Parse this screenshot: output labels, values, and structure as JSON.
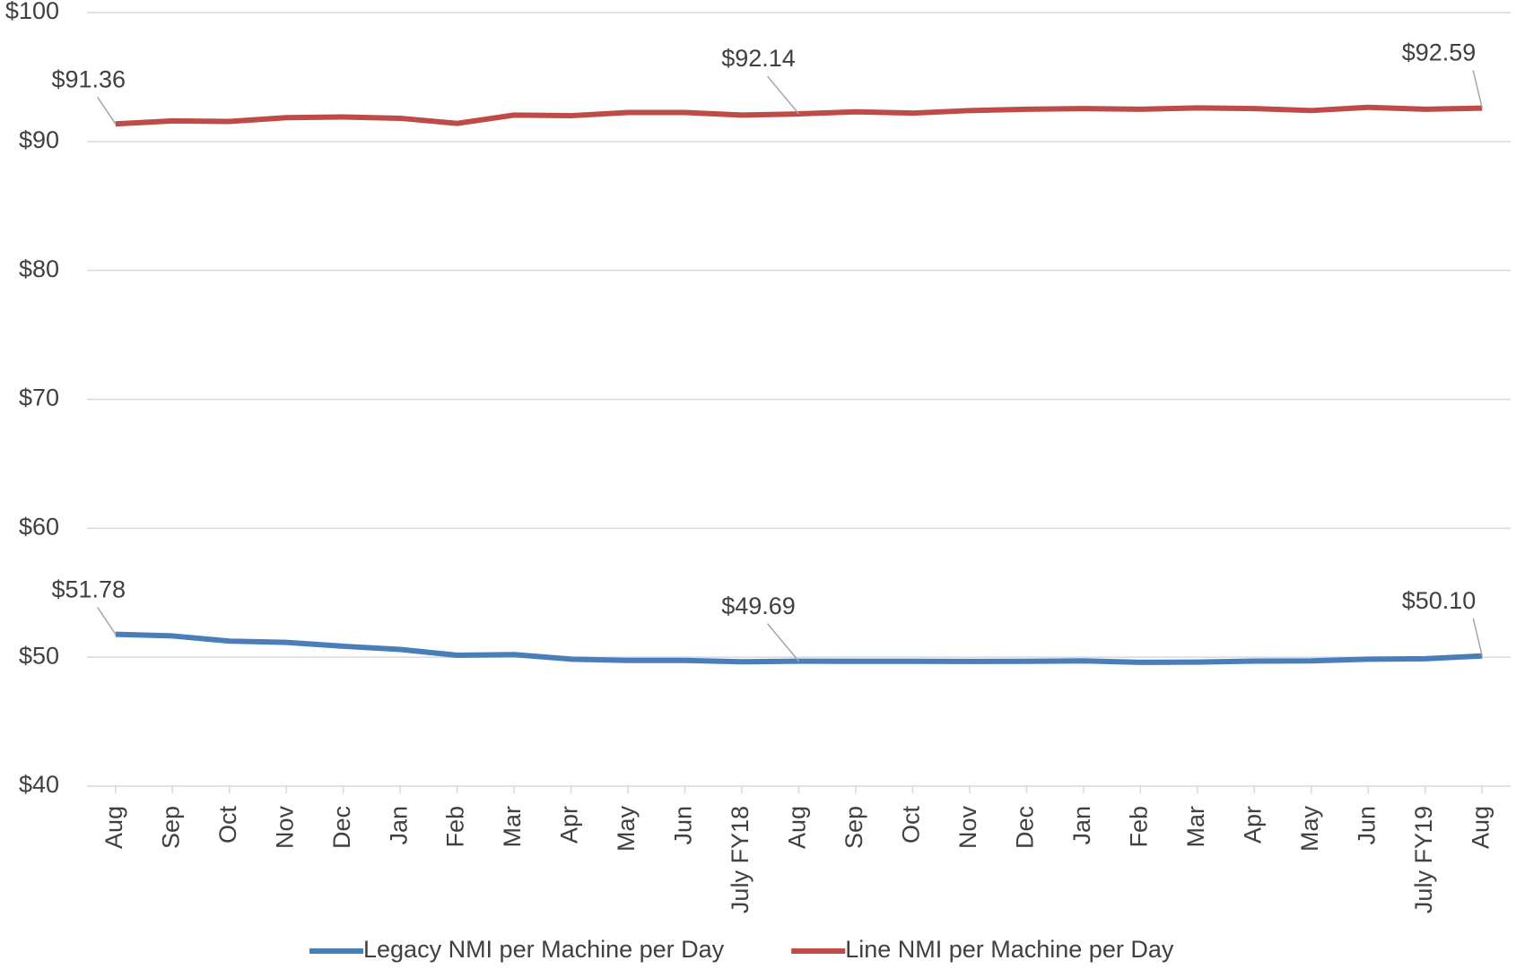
{
  "chart_data": {
    "type": "line",
    "categories": [
      "Aug",
      "Sep",
      "Oct",
      "Nov",
      "Dec",
      "Jan",
      "Feb",
      "Mar",
      "Apr",
      "May",
      "Jun",
      "July FY18",
      "Aug",
      "Sep",
      "Oct",
      "Nov",
      "Dec",
      "Jan",
      "Feb",
      "Mar",
      "Apr",
      "May",
      "Jun",
      "July FY19",
      "Aug"
    ],
    "series": [
      {
        "name": "Legacy NMI per Machine per Day",
        "color": "#4a7ebb",
        "values": [
          51.78,
          51.65,
          51.25,
          51.15,
          50.85,
          50.6,
          50.15,
          50.2,
          49.85,
          49.75,
          49.75,
          49.65,
          49.69,
          49.68,
          49.68,
          49.67,
          49.68,
          49.72,
          49.6,
          49.62,
          49.7,
          49.72,
          49.85,
          49.88,
          50.1
        ],
        "value_labels": [
          "$51.78",
          null,
          null,
          null,
          null,
          null,
          null,
          null,
          null,
          null,
          null,
          null,
          "$49.69",
          null,
          null,
          null,
          null,
          null,
          null,
          null,
          null,
          null,
          null,
          null,
          "$50.10"
        ]
      },
      {
        "name": "Line NMI per Machine per Day",
        "color": "#be4b48",
        "values": [
          91.36,
          91.6,
          91.55,
          91.85,
          91.9,
          91.8,
          91.4,
          92.05,
          92.0,
          92.25,
          92.25,
          92.05,
          92.14,
          92.3,
          92.2,
          92.4,
          92.5,
          92.55,
          92.5,
          92.6,
          92.55,
          92.4,
          92.65,
          92.5,
          92.59
        ],
        "value_labels": [
          "$91.36",
          null,
          null,
          null,
          null,
          null,
          null,
          null,
          null,
          null,
          null,
          null,
          "$92.14",
          null,
          null,
          null,
          null,
          null,
          null,
          null,
          null,
          null,
          null,
          null,
          "$92.59"
        ]
      }
    ],
    "ylim": [
      40,
      100
    ],
    "yticks": [
      {
        "value": 40,
        "label": "$40"
      },
      {
        "value": 50,
        "label": "$50"
      },
      {
        "value": 60,
        "label": "$60"
      },
      {
        "value": 70,
        "label": "$70"
      },
      {
        "value": 80,
        "label": "$80"
      },
      {
        "value": 90,
        "label": "$90"
      },
      {
        "value": 100,
        "label": "$100"
      }
    ],
    "grid": true,
    "legend": "bottom"
  }
}
